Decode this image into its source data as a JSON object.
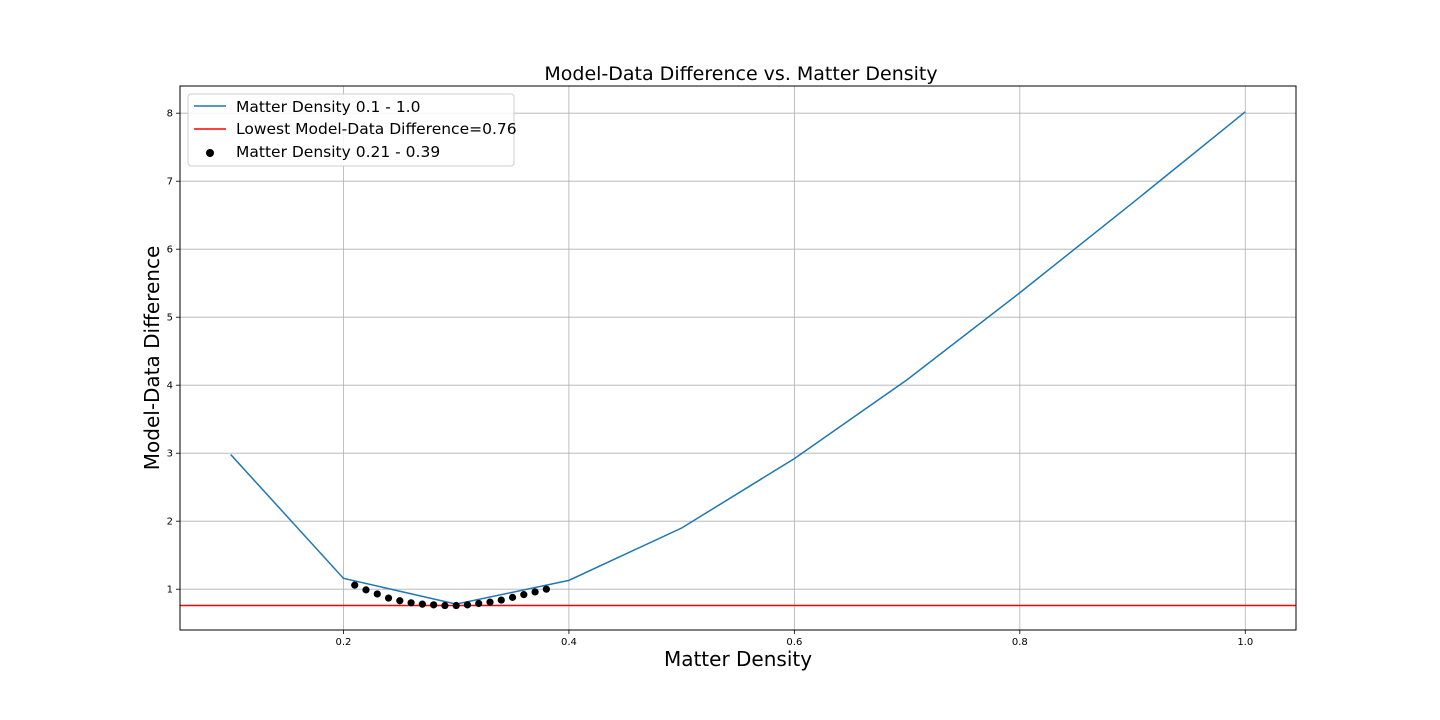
{
  "chart_data": {
    "type": "line",
    "title": "Model-Data Difference vs. Matter Density",
    "xlabel": "Matter Density",
    "ylabel": "Model-Data Difference",
    "xlim": [
      0.055,
      1.045
    ],
    "ylim": [
      0.4,
      8.4
    ],
    "xticks": [
      0.2,
      0.4,
      0.6,
      0.8,
      1.0
    ],
    "xtick_labels": [
      "0.2",
      "0.4",
      "0.6",
      "0.8",
      "1.0"
    ],
    "yticks": [
      1,
      2,
      3,
      4,
      5,
      6,
      7,
      8
    ],
    "ytick_labels": [
      "1",
      "2",
      "3",
      "4",
      "5",
      "6",
      "7",
      "8"
    ],
    "grid": true,
    "legend_position": "top-left",
    "series": [
      {
        "name": "Matter Density 0.1 - 1.0",
        "kind": "line",
        "color": "#1f77b4",
        "x": [
          0.1,
          0.2,
          0.3,
          0.4,
          0.5,
          0.6,
          0.7,
          0.8,
          0.9,
          1.0
        ],
        "y": [
          2.98,
          1.16,
          0.78,
          1.13,
          1.9,
          2.92,
          4.08,
          5.36,
          6.68,
          8.02
        ]
      },
      {
        "name": "Lowest Model-Data Difference=0.76",
        "kind": "hline",
        "color": "#ff0000",
        "y": 0.76
      },
      {
        "name": "Matter Density 0.21 - 0.39",
        "kind": "scatter",
        "color": "#000000",
        "x": [
          0.21,
          0.22,
          0.23,
          0.24,
          0.25,
          0.26,
          0.27,
          0.28,
          0.29,
          0.3,
          0.31,
          0.32,
          0.33,
          0.34,
          0.35,
          0.36,
          0.37,
          0.38
        ],
        "y": [
          1.06,
          0.99,
          0.93,
          0.87,
          0.83,
          0.8,
          0.78,
          0.77,
          0.76,
          0.76,
          0.77,
          0.79,
          0.81,
          0.84,
          0.88,
          0.92,
          0.96,
          1.0
        ]
      }
    ]
  }
}
